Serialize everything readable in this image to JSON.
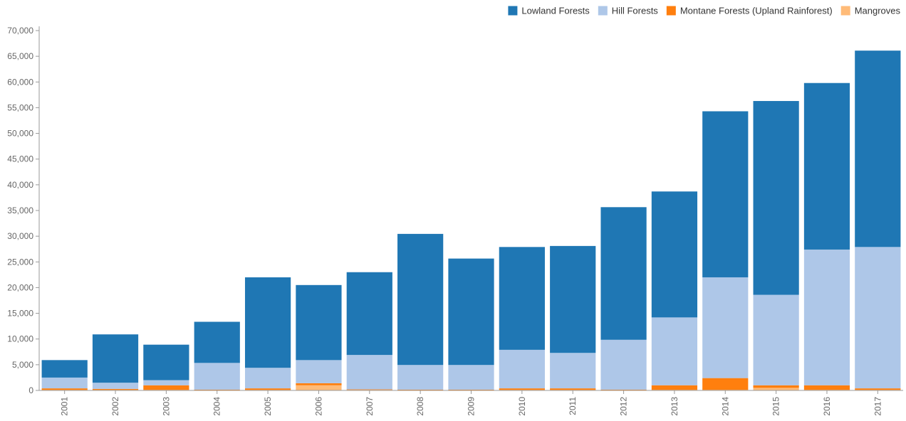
{
  "colors": {
    "lowland": "#1f77b4",
    "hill": "#aec7e8",
    "montane": "#ff7f0e",
    "mangroves": "#ffbb78"
  },
  "legend": {
    "items": [
      {
        "key": "lowland",
        "label": "Lowland Forests"
      },
      {
        "key": "hill",
        "label": "Hill Forests"
      },
      {
        "key": "montane",
        "label": "Montane Forests (Upland Rainforest)"
      },
      {
        "key": "mangroves",
        "label": "Mangroves"
      }
    ]
  },
  "chart_data": {
    "type": "bar",
    "stacked": true,
    "title": "",
    "xlabel": "",
    "ylabel": "",
    "ylim": [
      0,
      70000
    ],
    "yticks": [
      0,
      5000,
      10000,
      15000,
      20000,
      25000,
      30000,
      35000,
      40000,
      45000,
      50000,
      55000,
      60000,
      65000,
      70000
    ],
    "ytick_labels": [
      "0",
      "5,000",
      "10,000",
      "15,000",
      "20,000",
      "25,000",
      "30,000",
      "35,000",
      "40,000",
      "45,000",
      "50,000",
      "55,000",
      "60,000",
      "65,000",
      "70,000"
    ],
    "legend_position": "top-right",
    "grid": false,
    "categories": [
      "2001",
      "2002",
      "2003",
      "2004",
      "2005",
      "2006",
      "2007",
      "2008",
      "2009",
      "2010",
      "2011",
      "2012",
      "2013",
      "2014",
      "2015",
      "2016",
      "2017"
    ],
    "series": [
      {
        "key": "mangroves",
        "name": "Mangroves",
        "values": [
          100,
          100,
          100,
          50,
          100,
          1000,
          100,
          50,
          50,
          100,
          100,
          50,
          100,
          100,
          500,
          100,
          100
        ]
      },
      {
        "key": "montane",
        "name": "Montane Forests (Upland Rainforest)",
        "values": [
          300,
          200,
          900,
          100,
          300,
          400,
          100,
          100,
          100,
          300,
          300,
          100,
          900,
          2300,
          500,
          900,
          300
        ]
      },
      {
        "key": "hill",
        "name": "Hill Forests",
        "values": [
          2100,
          1200,
          1000,
          5200,
          4000,
          4500,
          6700,
          4800,
          4800,
          7500,
          6900,
          9700,
          13200,
          19600,
          17600,
          26400,
          27500
        ]
      },
      {
        "key": "lowland",
        "name": "Lowland Forests",
        "values": [
          3400,
          9400,
          6900,
          8000,
          17600,
          14600,
          16100,
          25500,
          20700,
          20000,
          20800,
          25800,
          24500,
          32300,
          37700,
          32400,
          38200
        ]
      }
    ]
  }
}
